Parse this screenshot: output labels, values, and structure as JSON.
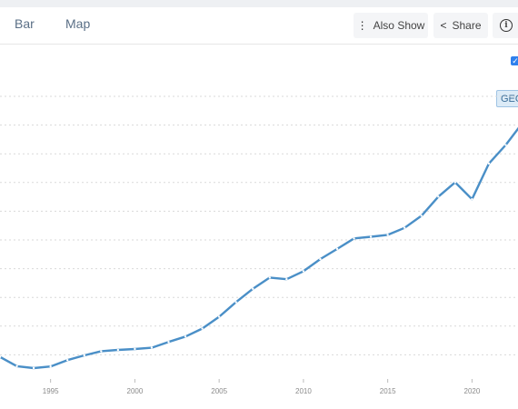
{
  "tabs": [
    {
      "label": "Bar"
    },
    {
      "label": "Map"
    }
  ],
  "toolbar": {
    "also_show_label": "Also Show",
    "share_label": "Share",
    "info_symbol": "i"
  },
  "badge": {
    "text": "GEO"
  },
  "colors": {
    "line": "#4a8fc7",
    "grid": "#d9d9d9",
    "accent": "#2f80ed"
  },
  "chart_data": {
    "type": "line",
    "title": "",
    "xlabel": "",
    "ylabel": "",
    "xlim": [
      1992,
      2023
    ],
    "x_ticks": [
      1995,
      2000,
      2005,
      2010,
      2015,
      2020
    ],
    "x": [
      1992,
      1993,
      1994,
      1995,
      1996,
      1997,
      1998,
      1999,
      2000,
      2001,
      2002,
      2003,
      2004,
      2005,
      2006,
      2007,
      2008,
      2009,
      2010,
      2011,
      2012,
      2013,
      2014,
      2015,
      2016,
      2017,
      2018,
      2019,
      2020,
      2021,
      2022,
      2023
    ],
    "series": [
      {
        "values": [
          8.5,
          5.6,
          5.0,
          5.5,
          7.5,
          9.0,
          10.3,
          10.7,
          11.0,
          11.4,
          13.2,
          14.9,
          17.4,
          21.1,
          25.7,
          29.9,
          33.4,
          32.9,
          35.4,
          39.2,
          42.4,
          45.7,
          46.2,
          46.8,
          49.0,
          52.8,
          58.8,
          63.3,
          58.0,
          69.2,
          75.0,
          82.0
        ]
      }
    ],
    "grid": {
      "horizontal": true,
      "vertical": false,
      "style": "dotted"
    }
  }
}
